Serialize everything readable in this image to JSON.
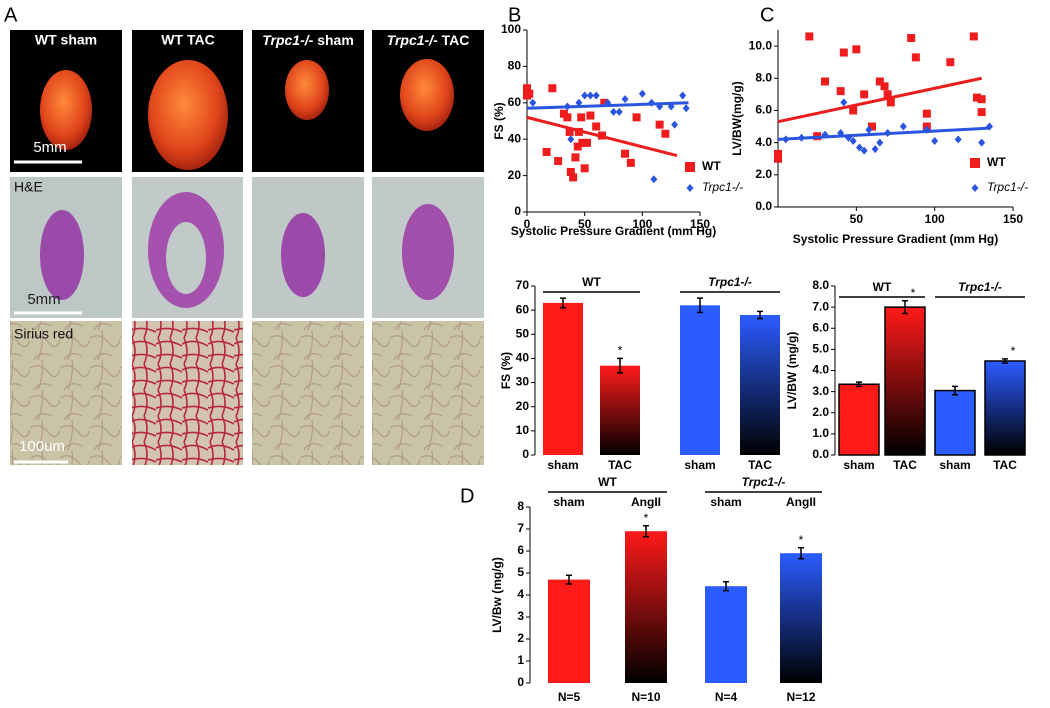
{
  "panels": {
    "letters": [
      "A",
      "B",
      "C",
      "D"
    ],
    "photo_headers": [
      [
        "WT sham"
      ],
      [
        "WT TAC"
      ],
      [
        "Trpc1-/-",
        " sham"
      ],
      [
        "Trpc1-/-",
        " TAC"
      ]
    ],
    "row_labels": [
      "H&E",
      "Sirius red"
    ],
    "scale_bars": [
      "5mm",
      "5mm",
      "100um"
    ]
  },
  "chart_data": [
    {
      "type": "scatter",
      "y_label": "FS (%)",
      "x_label": "Systolic Pressure Gradient (mm Hg)",
      "xlim": [
        0,
        150
      ],
      "ylim": [
        0,
        100
      ],
      "xticks": [
        0,
        50,
        100,
        150
      ],
      "yticks": [
        0,
        20,
        40,
        60,
        80,
        100
      ],
      "series": [
        {
          "name": "WT",
          "color": "#ee1c1c",
          "marker": "square",
          "label_style": "bold",
          "x": [
            0,
            0,
            0,
            2,
            17,
            22,
            27,
            32,
            35,
            37,
            38,
            40,
            42,
            44,
            45,
            47,
            48,
            50,
            52,
            55,
            60,
            65,
            67,
            85,
            90,
            95,
            115,
            120
          ],
          "values": [
            68,
            66,
            64,
            65,
            33,
            68,
            28,
            54,
            52,
            44,
            22,
            19,
            30,
            36,
            44,
            52,
            38,
            24,
            38,
            53,
            47,
            42,
            60,
            32,
            27,
            52,
            48,
            43
          ],
          "trend": {
            "x": [
              0,
              130
            ],
            "values": [
              52,
              31
            ]
          }
        },
        {
          "name": "Trpc1-/-",
          "color": "#2a55e0",
          "marker": "diamond",
          "label_style": "italic",
          "x": [
            5,
            35,
            38,
            45,
            50,
            55,
            60,
            70,
            75,
            80,
            85,
            100,
            108,
            110,
            115,
            125,
            128,
            135,
            138
          ],
          "values": [
            60,
            58,
            40,
            60,
            64,
            64,
            64,
            60,
            55,
            55,
            62,
            65,
            60,
            18,
            58,
            58,
            48,
            64,
            57
          ],
          "trend": {
            "x": [
              0,
              140
            ],
            "values": [
              57,
              60
            ]
          }
        }
      ]
    },
    {
      "type": "scatter",
      "y_label": "LV/BW(mg/g)",
      "x_label": "Systolic Pressure Gradient (mm Hg)",
      "xlim": [
        0,
        150
      ],
      "ylim": [
        0,
        11
      ],
      "xticks": [
        50,
        100,
        150
      ],
      "yticks": [
        {
          "value": 0,
          "label": "0.0"
        },
        {
          "value": 2,
          "label": "2.0"
        },
        {
          "value": 4,
          "label": "4.0"
        },
        {
          "value": 6,
          "label": "6.0"
        },
        {
          "value": 8,
          "label": "8.0"
        },
        {
          "value": 10,
          "label": "10.0"
        }
      ],
      "series": [
        {
          "name": "WT",
          "color": "#ee1c1c",
          "marker": "square",
          "label_style": "bold",
          "x": [
            0,
            0,
            20,
            25,
            30,
            40,
            42,
            48,
            50,
            55,
            60,
            65,
            68,
            70,
            72,
            85,
            88,
            95,
            95,
            110,
            125,
            127,
            130,
            130
          ],
          "values": [
            3.3,
            3.0,
            10.6,
            4.4,
            7.8,
            7.2,
            9.6,
            6.0,
            9.8,
            7.0,
            5.0,
            7.8,
            7.5,
            7.0,
            6.5,
            10.5,
            9.3,
            5.8,
            5.0,
            9.0,
            10.6,
            6.8,
            6.7,
            5.9
          ],
          "trend": {
            "x": [
              0,
              130
            ],
            "values": [
              5.3,
              8.0
            ]
          }
        },
        {
          "name": "Trpc1-/-",
          "color": "#2a55e0",
          "marker": "diamond",
          "label_style": "italic",
          "x": [
            5,
            15,
            30,
            40,
            42,
            45,
            48,
            52,
            55,
            58,
            62,
            65,
            70,
            80,
            95,
            100,
            115,
            130,
            135
          ],
          "values": [
            4.2,
            4.3,
            4.5,
            4.6,
            6.5,
            4.3,
            4.1,
            3.7,
            3.5,
            4.8,
            3.6,
            4.0,
            4.6,
            5.0,
            4.8,
            4.1,
            4.2,
            4.0,
            5.0
          ],
          "trend": {
            "x": [
              0,
              135
            ],
            "values": [
              4.2,
              4.9
            ]
          }
        }
      ]
    },
    {
      "type": "bar",
      "y_label": "FS (%)",
      "ylim": [
        0,
        70
      ],
      "yticks": [
        0,
        10,
        20,
        30,
        40,
        50,
        60,
        70
      ],
      "categories": [
        "sham",
        "TAC",
        "sham",
        "TAC"
      ],
      "values": [
        63,
        37,
        62,
        58
      ],
      "errors": [
        2,
        3,
        3,
        1.5
      ],
      "colors": [
        "#ff1a1a",
        "#ff1a1a",
        "#2b5cff",
        "#2b5cff"
      ],
      "fills": [
        "solid",
        "gradient",
        "solid",
        "gradient"
      ],
      "significance": [
        null,
        "*",
        null,
        null
      ],
      "groups": [
        {
          "name": "WT",
          "span": [
            0,
            1
          ]
        },
        {
          "name": "Trpc1-/-",
          "span": [
            2,
            3
          ]
        }
      ]
    },
    {
      "type": "bar",
      "y_label": "LV/BW (mg/g)",
      "ylim": [
        0,
        8
      ],
      "yticks": [
        {
          "value": 0,
          "label": "0.0"
        },
        {
          "value": 1,
          "label": "1.0"
        },
        {
          "value": 2,
          "label": "2.0"
        },
        {
          "value": 3,
          "label": "3.0"
        },
        {
          "value": 4,
          "label": "4.0"
        },
        {
          "value": 5,
          "label": "5.0"
        },
        {
          "value": 6,
          "label": "6.0"
        },
        {
          "value": 7,
          "label": "7.0"
        },
        {
          "value": 8,
          "label": "8.0"
        }
      ],
      "categories": [
        "sham",
        "TAC",
        "sham",
        "TAC"
      ],
      "values": [
        3.35,
        7.0,
        3.05,
        4.45
      ],
      "errors": [
        0.1,
        0.3,
        0.2,
        0.1
      ],
      "colors": [
        "#ff1a1a",
        "#ff1a1a",
        "#2b5cff",
        "#2b5cff"
      ],
      "fills": [
        "solid",
        "gradient",
        "solid",
        "gradient"
      ],
      "significance": [
        null,
        "*",
        null,
        "*"
      ],
      "groups": [
        {
          "name": "WT",
          "span": [
            0,
            1
          ]
        },
        {
          "name": "Trpc1-/-",
          "span": [
            2,
            3
          ]
        }
      ]
    },
    {
      "type": "bar",
      "y_label": "LV/Bw (mg/g)",
      "ylim": [
        0,
        8
      ],
      "yticks": [
        0,
        1,
        2,
        3,
        4,
        5,
        6,
        7,
        8
      ],
      "categories": [
        "sham",
        "AngII",
        "sham",
        "AngII"
      ],
      "values": [
        4.7,
        6.9,
        4.4,
        5.9
      ],
      "errors": [
        0.2,
        0.25,
        0.2,
        0.25
      ],
      "colors": [
        "#ff1a1a",
        "#ff1a1a",
        "#2b5cff",
        "#2b5cff"
      ],
      "fills": [
        "solid",
        "gradient",
        "solid",
        "gradient"
      ],
      "significance": [
        null,
        "*",
        null,
        "*"
      ],
      "n_labels": [
        "N=5",
        "N=10",
        "N=4",
        "N=12"
      ],
      "groups": [
        {
          "name": "WT",
          "span": [
            0,
            1
          ]
        },
        {
          "name": "Trpc1-/-",
          "span": [
            2,
            3
          ]
        }
      ]
    }
  ]
}
